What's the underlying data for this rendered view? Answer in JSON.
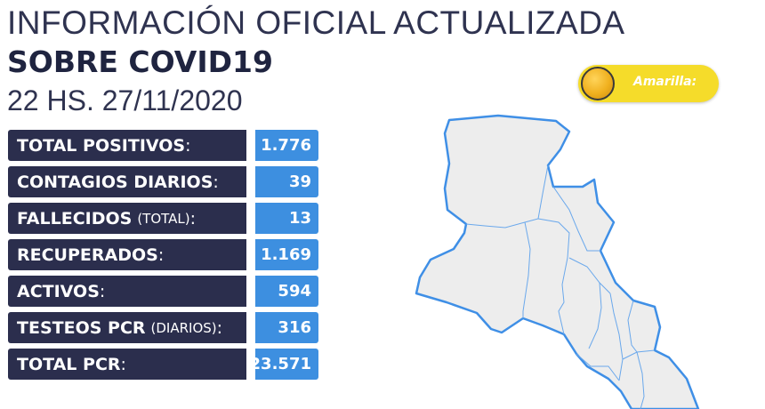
{
  "header": {
    "line1": "INFORMACIÓN OFICIAL ACTUALIZADA",
    "line2": "SOBRE COVID19",
    "line3": "22 HS. 27/11/2020"
  },
  "stats": [
    {
      "label": "TOTAL POSITIVOS",
      "sub": "",
      "colon": ":",
      "value": "1.776"
    },
    {
      "label": "CONTAGIOS DIARIOS",
      "sub": "",
      "colon": ":",
      "value": "39"
    },
    {
      "label": "FALLECIDOS",
      "sub": "(TOTAL)",
      "colon": ":",
      "value": "13"
    },
    {
      "label": "RECUPERADOS",
      "sub": "",
      "colon": ":",
      "value": "1.169"
    },
    {
      "label": "ACTIVOS",
      "sub": "",
      "colon": ":",
      "value": "594"
    },
    {
      "label": "TESTEOS PCR",
      "sub": "(DIARIOS)",
      "colon": ":",
      "value": "316"
    },
    {
      "label": "TOTAL PCR",
      "sub": "",
      "colon": ":",
      "value": "23.571"
    }
  ],
  "alert": {
    "label": "Amarilla:",
    "color": "#f5dc2a",
    "icon": "sun-icon"
  },
  "colors": {
    "label_bg": "#2b2e4d",
    "value_bg": "#3d8fe0",
    "map_border": "#3f8fe6",
    "map_fill": "#ededed"
  }
}
